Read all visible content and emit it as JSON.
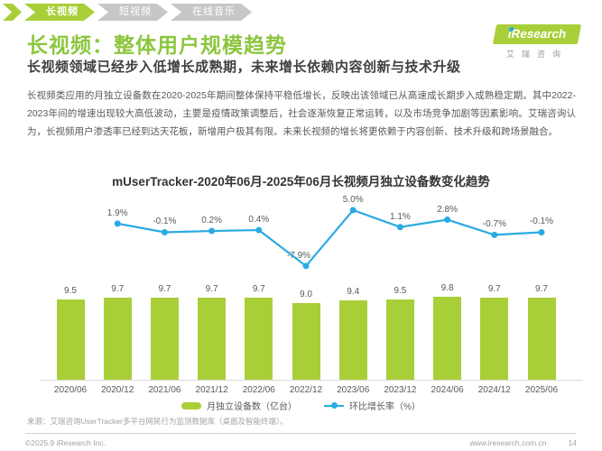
{
  "nav": {
    "tabs": [
      {
        "label": "长视频",
        "active": true
      },
      {
        "label": "短视频",
        "active": false
      },
      {
        "label": "在线音乐",
        "active": false
      }
    ]
  },
  "header": {
    "title": "长视频：整体用户规模趋势",
    "subtitle": "长视频领域已经步入低增长成熟期，未来增长依赖内容创新与技术升级",
    "logo": {
      "brand": "iResearch",
      "brand_cn": "艾瑞咨询"
    }
  },
  "body_text": "长视频类应用的月独立设备数在2020-2025年期间整体保持平稳低增长，反映出该领域已从高速成长期步入成熟稳定期。其中2022-2023年间的增速出现较大高低波动，主要是疫情政策调整后，社会逐渐恢复正常运转，以及市场竞争加剧等因素影响。艾瑞咨询认为，长视频用户渗透率已经到达天花板，新增用户极其有限。未来长视频的增长将更依赖于内容创新、技术升级和跨场景融合。",
  "chart_data": {
    "type": "bar+line",
    "title": "mUserTracker-2020年06月-2025年06月长视频月独立设备数变化趋势",
    "categories": [
      "2020/06",
      "2020/12",
      "2021/06",
      "2021/12",
      "2022/06",
      "2022/12",
      "2023/06",
      "2023/12",
      "2024/06",
      "2024/12",
      "2025/06"
    ],
    "series": [
      {
        "name": "月独立设备数（亿台）",
        "type": "bar",
        "color": "#a9cf38",
        "values": [
          9.5,
          9.7,
          9.7,
          9.7,
          9.7,
          9.0,
          9.4,
          9.5,
          9.8,
          9.7,
          9.7
        ]
      },
      {
        "name": "环比增长率（%）",
        "type": "line",
        "color": "#29abe2",
        "values": [
          null,
          1.9,
          -0.1,
          0.2,
          0.4,
          -7.9,
          5.0,
          1.1,
          2.8,
          -0.7,
          -0.1
        ]
      }
    ],
    "ylabel_left": "亿台",
    "ylabel_right": "%",
    "grid": false,
    "legend_position": "bottom"
  },
  "source_note": "来源：艾瑞咨询UserTracker多平台网民行为监测数据库（桌面及智能终端）。",
  "footer": {
    "copyright": "©2025.9 iResearch Inc.",
    "website": "www.iresearch.com.cn",
    "page_number": "14"
  },
  "colors": {
    "brand_green": "#a9cf38",
    "title_green": "#8cc63f",
    "line_blue": "#29abe2"
  }
}
